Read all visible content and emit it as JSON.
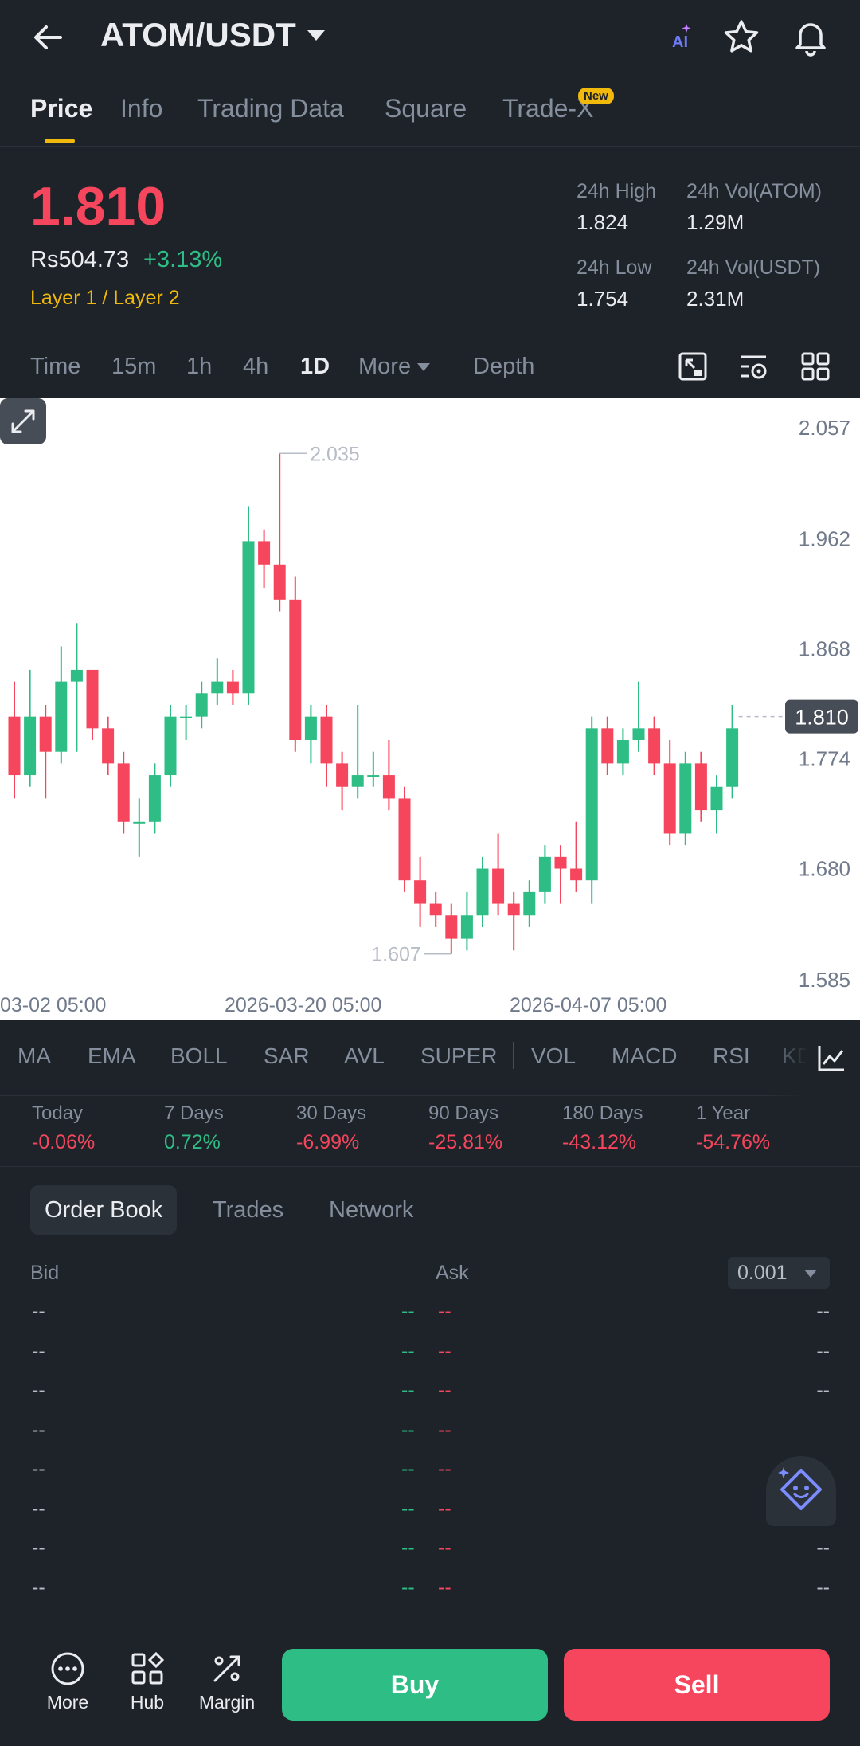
{
  "header": {
    "pair": "ATOM/USDT",
    "ai_label": "AI"
  },
  "tabs": [
    {
      "label": "Price",
      "active": true
    },
    {
      "label": "Info"
    },
    {
      "label": "Trading Data"
    },
    {
      "label": "Square"
    },
    {
      "label": "Trade-X",
      "badge": "New"
    }
  ],
  "summary": {
    "price": "1.810",
    "fiat": "Rs504.73",
    "change": "+3.13%",
    "tag": "Layer 1 / Layer 2",
    "stats": [
      {
        "label": "24h High",
        "value": "1.824"
      },
      {
        "label": "24h Vol(ATOM)",
        "value": "1.29M"
      },
      {
        "label": "24h Low",
        "value": "1.754"
      },
      {
        "label": "24h Vol(USDT)",
        "value": "2.31M"
      }
    ]
  },
  "intervals": {
    "items": [
      "Time",
      "15m",
      "1h",
      "4h",
      "1D",
      "More",
      "Depth"
    ],
    "active": "1D"
  },
  "chart_data": {
    "type": "candlestick",
    "interval": "1D",
    "y_ticks": [
      "2.057",
      "1.962",
      "1.868",
      "1.774",
      "1.680",
      "1.585"
    ],
    "ylim": [
      1.585,
      2.057
    ],
    "x_ticks": [
      "03-02 05:00",
      "2026-03-20 05:00",
      "2026-04-07 05:00"
    ],
    "last_price": "1.810",
    "high_marker": "2.035",
    "low_marker": "1.607",
    "colors": {
      "up": "#2EBD85",
      "down": "#F6465D"
    },
    "candles": [
      {
        "o": 1.81,
        "h": 1.84,
        "l": 1.74,
        "c": 1.76
      },
      {
        "o": 1.76,
        "h": 1.85,
        "l": 1.75,
        "c": 1.81
      },
      {
        "o": 1.81,
        "h": 1.82,
        "l": 1.74,
        "c": 1.78
      },
      {
        "o": 1.78,
        "h": 1.87,
        "l": 1.77,
        "c": 1.84
      },
      {
        "o": 1.84,
        "h": 1.89,
        "l": 1.78,
        "c": 1.85
      },
      {
        "o": 1.85,
        "h": 1.85,
        "l": 1.79,
        "c": 1.8
      },
      {
        "o": 1.8,
        "h": 1.81,
        "l": 1.76,
        "c": 1.77
      },
      {
        "o": 1.77,
        "h": 1.78,
        "l": 1.71,
        "c": 1.72
      },
      {
        "o": 1.72,
        "h": 1.74,
        "l": 1.69,
        "c": 1.72
      },
      {
        "o": 1.72,
        "h": 1.77,
        "l": 1.71,
        "c": 1.76
      },
      {
        "o": 1.76,
        "h": 1.82,
        "l": 1.75,
        "c": 1.81
      },
      {
        "o": 1.81,
        "h": 1.82,
        "l": 1.79,
        "c": 1.81
      },
      {
        "o": 1.81,
        "h": 1.84,
        "l": 1.8,
        "c": 1.83
      },
      {
        "o": 1.83,
        "h": 1.86,
        "l": 1.82,
        "c": 1.84
      },
      {
        "o": 1.84,
        "h": 1.85,
        "l": 1.82,
        "c": 1.83
      },
      {
        "o": 1.83,
        "h": 1.99,
        "l": 1.82,
        "c": 1.96
      },
      {
        "o": 1.96,
        "h": 1.97,
        "l": 1.92,
        "c": 1.94
      },
      {
        "o": 1.94,
        "h": 2.035,
        "l": 1.9,
        "c": 1.91
      },
      {
        "o": 1.91,
        "h": 1.93,
        "l": 1.78,
        "c": 1.79
      },
      {
        "o": 1.79,
        "h": 1.82,
        "l": 1.77,
        "c": 1.81
      },
      {
        "o": 1.81,
        "h": 1.82,
        "l": 1.75,
        "c": 1.77
      },
      {
        "o": 1.77,
        "h": 1.78,
        "l": 1.73,
        "c": 1.75
      },
      {
        "o": 1.75,
        "h": 1.82,
        "l": 1.74,
        "c": 1.76
      },
      {
        "o": 1.76,
        "h": 1.78,
        "l": 1.75,
        "c": 1.76
      },
      {
        "o": 1.76,
        "h": 1.79,
        "l": 1.73,
        "c": 1.74
      },
      {
        "o": 1.74,
        "h": 1.75,
        "l": 1.66,
        "c": 1.67
      },
      {
        "o": 1.67,
        "h": 1.69,
        "l": 1.63,
        "c": 1.65
      },
      {
        "o": 1.65,
        "h": 1.66,
        "l": 1.63,
        "c": 1.64
      },
      {
        "o": 1.64,
        "h": 1.65,
        "l": 1.607,
        "c": 1.62
      },
      {
        "o": 1.62,
        "h": 1.66,
        "l": 1.61,
        "c": 1.64
      },
      {
        "o": 1.64,
        "h": 1.69,
        "l": 1.63,
        "c": 1.68
      },
      {
        "o": 1.68,
        "h": 1.71,
        "l": 1.64,
        "c": 1.65
      },
      {
        "o": 1.65,
        "h": 1.66,
        "l": 1.61,
        "c": 1.64
      },
      {
        "o": 1.64,
        "h": 1.67,
        "l": 1.63,
        "c": 1.66
      },
      {
        "o": 1.66,
        "h": 1.7,
        "l": 1.65,
        "c": 1.69
      },
      {
        "o": 1.69,
        "h": 1.7,
        "l": 1.65,
        "c": 1.68
      },
      {
        "o": 1.68,
        "h": 1.72,
        "l": 1.66,
        "c": 1.67
      },
      {
        "o": 1.67,
        "h": 1.81,
        "l": 1.65,
        "c": 1.8
      },
      {
        "o": 1.8,
        "h": 1.81,
        "l": 1.76,
        "c": 1.77
      },
      {
        "o": 1.77,
        "h": 1.8,
        "l": 1.76,
        "c": 1.79
      },
      {
        "o": 1.79,
        "h": 1.84,
        "l": 1.78,
        "c": 1.8
      },
      {
        "o": 1.8,
        "h": 1.81,
        "l": 1.76,
        "c": 1.77
      },
      {
        "o": 1.77,
        "h": 1.79,
        "l": 1.7,
        "c": 1.71
      },
      {
        "o": 1.71,
        "h": 1.78,
        "l": 1.7,
        "c": 1.77
      },
      {
        "o": 1.77,
        "h": 1.78,
        "l": 1.72,
        "c": 1.73
      },
      {
        "o": 1.73,
        "h": 1.76,
        "l": 1.71,
        "c": 1.75
      },
      {
        "o": 1.75,
        "h": 1.82,
        "l": 1.74,
        "c": 1.8
      }
    ]
  },
  "indicators": [
    "MA",
    "EMA",
    "BOLL",
    "SAR",
    "AVL",
    "SUPER",
    "VOL",
    "MACD",
    "RSI",
    "KD"
  ],
  "performance": [
    {
      "label": "Today",
      "value": "-0.06%",
      "trend": "neg"
    },
    {
      "label": "7 Days",
      "value": "0.72%",
      "trend": "pos"
    },
    {
      "label": "30 Days",
      "value": "-6.99%",
      "trend": "neg"
    },
    {
      "label": "90 Days",
      "value": "-25.81%",
      "trend": "neg"
    },
    {
      "label": "180 Days",
      "value": "-43.12%",
      "trend": "neg"
    },
    {
      "label": "1 Year",
      "value": "-54.76%",
      "trend": "neg"
    }
  ],
  "order_book": {
    "tabs": [
      "Order Book",
      "Trades",
      "Network"
    ],
    "bid_label": "Bid",
    "ask_label": "Ask",
    "precision": "0.001",
    "placeholder": "--",
    "rows": 8
  },
  "bottom_nav": [
    {
      "label": "More",
      "icon": "more-circle-icon"
    },
    {
      "label": "Hub",
      "icon": "hub-grid-icon"
    },
    {
      "label": "Margin",
      "icon": "margin-percent-icon"
    }
  ],
  "actions": {
    "buy": "Buy",
    "sell": "Sell"
  }
}
